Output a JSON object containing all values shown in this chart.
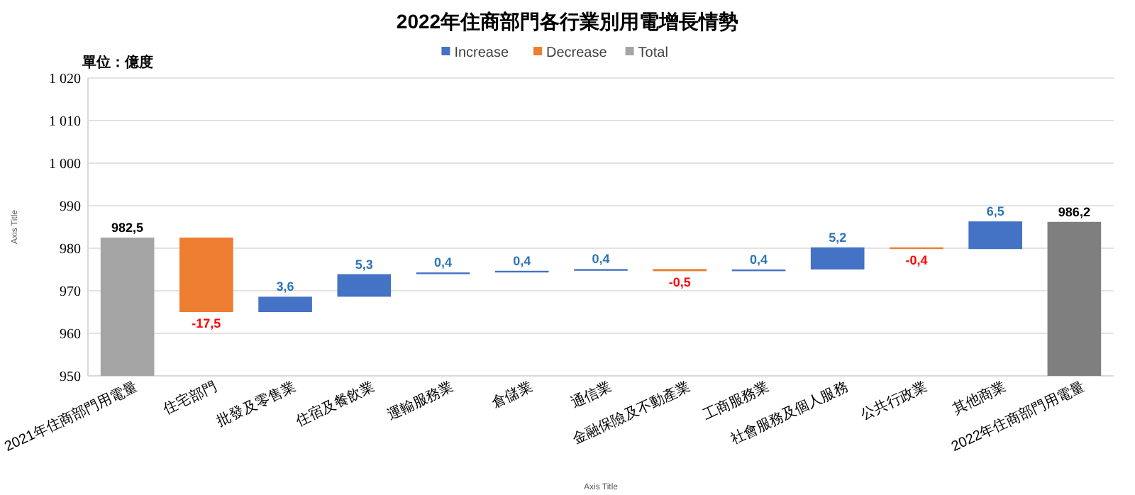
{
  "chart_data": {
    "type": "bar",
    "title": "2022年住商部門各行業別用電增長情勢",
    "xlabel": "Axis Title",
    "ylabel": "Axis Title",
    "annotations": [
      "單位：億度"
    ],
    "categories": [
      "2021年住商部門用電量",
      "住宅部門",
      "批發及零售業",
      "住宿及餐飲業",
      "運輸服務業",
      "倉儲業",
      "通信業",
      "金融保險及不動產業",
      "工商服務業",
      "社會服務及個人服務",
      "公共行政業",
      "其他商業",
      "2022年住商部門用電量"
    ],
    "series": [
      {
        "name": "Increase",
        "color": "#4472c4",
        "base": [
          null,
          null,
          965,
          968.6,
          973.9,
          974.3,
          974.7,
          null,
          974.6,
          975,
          null,
          979.8,
          null
        ],
        "values": [
          null,
          null,
          3.6,
          5.3,
          0.4,
          0.4,
          0.4,
          null,
          0.4,
          5.2,
          null,
          6.5,
          null
        ],
        "value_labels": [
          null,
          null,
          "3,6",
          "5,3",
          "0,4",
          "0,4",
          "0,4",
          null,
          "0,4",
          "5,2",
          null,
          "6,5",
          null
        ]
      },
      {
        "name": "Decrease",
        "color": "#ed7d31",
        "base": [
          null,
          982.5,
          null,
          null,
          null,
          null,
          null,
          975.1,
          null,
          null,
          980.2,
          null,
          null
        ],
        "values": [
          null,
          -17.5,
          null,
          null,
          null,
          null,
          null,
          -0.5,
          null,
          null,
          -0.4,
          null,
          null
        ],
        "value_labels": [
          null,
          "-17,5",
          null,
          null,
          null,
          null,
          null,
          "-0,5",
          null,
          null,
          "-0,4",
          null,
          null
        ]
      },
      {
        "name": "Total",
        "color": "#a5a5a5",
        "colors": [
          "#a5a5a5",
          null,
          null,
          null,
          null,
          null,
          null,
          null,
          null,
          null,
          null,
          null,
          "#7f7f7f"
        ],
        "values": [
          982.5,
          null,
          null,
          null,
          null,
          null,
          null,
          null,
          null,
          null,
          null,
          null,
          986.2
        ],
        "value_labels": [
          "982,5",
          null,
          null,
          null,
          null,
          null,
          null,
          null,
          null,
          null,
          null,
          null,
          "986,2"
        ]
      }
    ],
    "ylim": [
      950,
      1020
    ],
    "yticks": [
      950,
      960,
      970,
      980,
      990,
      {
        "value": 1000,
        "label": "1 000"
      },
      {
        "value": 1010,
        "label": "1 010"
      },
      {
        "value": 1020,
        "label": "1 020"
      }
    ],
    "grid": "y",
    "legend": "top"
  }
}
